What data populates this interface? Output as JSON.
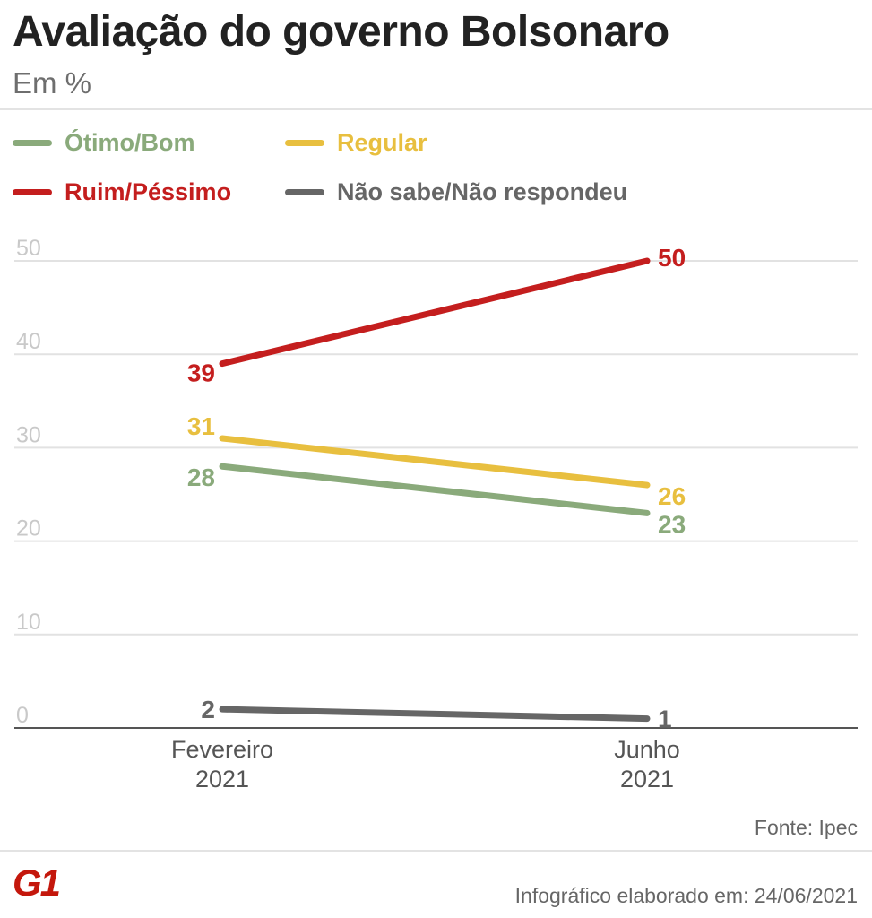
{
  "header": {
    "title": "Avaliação do governo Bolsonaro",
    "subtitle": "Em %"
  },
  "footer": {
    "source": "Fonte: Ipec",
    "credit": "Infográfico elaborado em: 24/06/2021",
    "logo_text": "G1"
  },
  "colors": {
    "otimo_bom": "#8aaa7b",
    "regular": "#e8bf3f",
    "ruim_pessimo": "#c41e1e",
    "nao_sabe": "#666666",
    "logo": "#c4170c"
  },
  "chart_data": {
    "type": "line",
    "categories": [
      "Fevereiro 2021",
      "Junho 2021"
    ],
    "category_lines": [
      [
        "Fevereiro",
        "2021"
      ],
      [
        "Junho",
        "2021"
      ]
    ],
    "ylim": [
      0,
      50
    ],
    "y_ticks": [
      0,
      10,
      20,
      30,
      40,
      50
    ],
    "grid": true,
    "legend_position": "top",
    "series": [
      {
        "name": "Ótimo/Bom",
        "values": [
          28,
          23
        ],
        "color": "#8aaa7b"
      },
      {
        "name": "Regular",
        "values": [
          31,
          26
        ],
        "color": "#e8bf3f"
      },
      {
        "name": "Ruim/Péssimo",
        "values": [
          39,
          50
        ],
        "color": "#c41e1e"
      },
      {
        "name": "Não sabe/Não respondeu",
        "values": [
          2,
          1
        ],
        "color": "#666666"
      }
    ]
  }
}
